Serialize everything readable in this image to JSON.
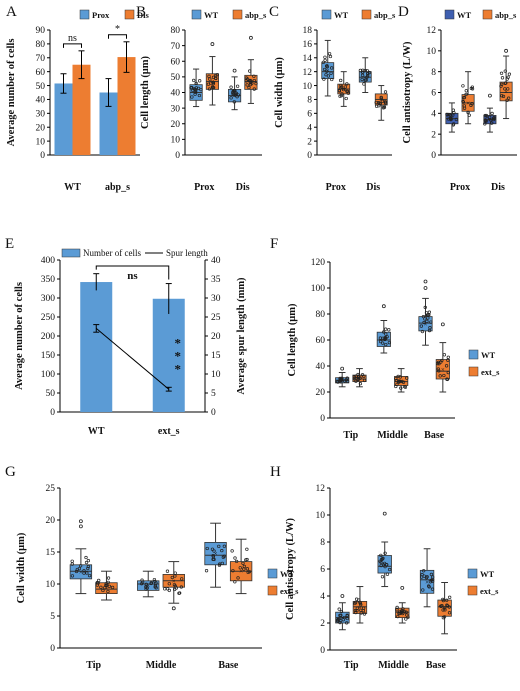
{
  "colors": {
    "blue": "#5b9bd5",
    "orange": "#ed7d31",
    "axis": "#000000",
    "box_stroke": "#333333",
    "dot": "#222222"
  },
  "chart_data": [
    {
      "panel": "A",
      "type": "bar",
      "ylabel": "Average number of cells",
      "ylim": [
        0,
        90
      ],
      "yticks": [
        0,
        10,
        20,
        30,
        40,
        50,
        60,
        70,
        80,
        90
      ],
      "categories": [
        "WT",
        "abp_s"
      ],
      "series": [
        {
          "name": "Prox",
          "color": "#5b9bd5",
          "values": [
            51.5,
            45
          ],
          "errors": [
            7,
            10
          ]
        },
        {
          "name": "Dis",
          "color": "#ed7d31",
          "values": [
            65,
            70.5
          ],
          "errors": [
            10,
            11
          ]
        }
      ],
      "annotations": [
        "ns",
        "*"
      ],
      "legend": "top"
    },
    {
      "panel": "B",
      "type": "box",
      "ylabel": "Cell length (μm)",
      "ylim": [
        0,
        80
      ],
      "yticks": [
        0,
        10,
        20,
        30,
        40,
        50,
        60,
        70,
        80
      ],
      "categories": [
        "Prox",
        "Dis"
      ],
      "series": [
        {
          "name": "WT",
          "color": "#5b9bd5",
          "boxes": [
            {
              "min": 31,
              "q1": 35,
              "median": 40,
              "q3": 45,
              "max": 55,
              "outliers": []
            },
            {
              "min": 29,
              "q1": 34,
              "median": 38,
              "q3": 42,
              "max": 50,
              "outliers": [
                54
              ]
            }
          ]
        },
        {
          "name": "abp_s",
          "color": "#ed7d31",
          "boxes": [
            {
              "min": 32,
              "q1": 42,
              "median": 47,
              "q3": 52,
              "max": 63,
              "outliers": [
                71
              ]
            },
            {
              "min": 33,
              "q1": 42,
              "median": 47,
              "q3": 51,
              "max": 61,
              "outliers": [
                75
              ]
            }
          ]
        }
      ],
      "legend": "top"
    },
    {
      "panel": "C",
      "type": "box",
      "ylabel": "Cell width (μm)",
      "ylim": [
        0,
        18
      ],
      "yticks": [
        0,
        2,
        4,
        6,
        8,
        10,
        12,
        14,
        16,
        18
      ],
      "categories": [
        "Prox",
        "Dis"
      ],
      "series": [
        {
          "name": "WT",
          "color": "#5b9bd5",
          "boxes": [
            {
              "min": 8.5,
              "q1": 11,
              "median": 12,
              "q3": 13.3,
              "max": 16.5,
              "outliers": []
            },
            {
              "min": 9,
              "q1": 10.5,
              "median": 11.2,
              "q3": 12,
              "max": 14,
              "outliers": []
            }
          ]
        },
        {
          "name": "abp_s",
          "color": "#ed7d31",
          "boxes": [
            {
              "min": 7,
              "q1": 8.8,
              "median": 9.5,
              "q3": 10.2,
              "max": 12,
              "outliers": []
            },
            {
              "min": 5,
              "q1": 7.2,
              "median": 8,
              "q3": 8.8,
              "max": 10,
              "outliers": []
            }
          ]
        }
      ],
      "legend": "top"
    },
    {
      "panel": "D",
      "type": "box",
      "ylabel": "Cell antisotropy (L/W)",
      "ylim": [
        0,
        12
      ],
      "yticks": [
        0,
        2,
        4,
        6,
        8,
        10,
        12
      ],
      "categories": [
        "Prox",
        "Dis"
      ],
      "series": [
        {
          "name": "WT",
          "color": "#3f5fb0",
          "boxes": [
            {
              "min": 2.2,
              "q1": 3,
              "median": 3.5,
              "q3": 4,
              "max": 5,
              "outliers": []
            },
            {
              "min": 2.2,
              "q1": 3,
              "median": 3.4,
              "q3": 3.8,
              "max": 4.5,
              "outliers": [
                5.7
              ]
            }
          ]
        },
        {
          "name": "abp_s",
          "color": "#ed7d31",
          "boxes": [
            {
              "min": 3,
              "q1": 4.2,
              "median": 5,
              "q3": 5.8,
              "max": 8,
              "outliers": []
            },
            {
              "min": 3.5,
              "q1": 5.2,
              "median": 6,
              "q3": 7,
              "max": 9.5,
              "outliers": [
                10
              ]
            }
          ]
        }
      ],
      "legend": "top"
    },
    {
      "panel": "E",
      "type": "bar+line",
      "categories": [
        "WT",
        "ext_s"
      ],
      "ylabel": "Average number of cells",
      "y2label": "Average spur length (mm)",
      "ylim": [
        0,
        400
      ],
      "yticks": [
        0,
        50,
        100,
        150,
        200,
        250,
        300,
        350,
        400
      ],
      "y2lim": [
        0,
        40
      ],
      "y2ticks": [
        0,
        5,
        10,
        15,
        20,
        25,
        30,
        35,
        40
      ],
      "series": [
        {
          "name": "Number of cells",
          "color": "#5b9bd5",
          "type": "bar",
          "values": [
            342,
            298
          ],
          "errors": [
            22,
            40
          ]
        },
        {
          "name": "Spur length",
          "color": "#000000",
          "type": "line",
          "axis": "right",
          "values": [
            22,
            6
          ],
          "errors": [
            1,
            0.5
          ]
        }
      ],
      "annotations": [
        "ns",
        "*",
        "*",
        "*"
      ],
      "legend": "top"
    },
    {
      "panel": "F",
      "type": "box",
      "ylabel": "Cell length (μm)",
      "ylim": [
        0,
        120
      ],
      "yticks": [
        0,
        20,
        40,
        60,
        80,
        100,
        120
      ],
      "categories": [
        "Tip",
        "Middle",
        "Base"
      ],
      "series": [
        {
          "name": "WT",
          "color": "#5b9bd5",
          "boxes": [
            {
              "min": 24,
              "q1": 27,
              "median": 29,
              "q3": 31,
              "max": 35,
              "outliers": [
                38
              ]
            },
            {
              "min": 50,
              "q1": 55,
              "median": 60,
              "q3": 66,
              "max": 75,
              "outliers": [
                86
              ]
            },
            {
              "min": 56,
              "q1": 67,
              "median": 73,
              "q3": 78,
              "max": 92,
              "outliers": [
                100,
                105
              ]
            }
          ]
        },
        {
          "name": "ext_s",
          "color": "#ed7d31",
          "boxes": [
            {
              "min": 24,
              "q1": 28,
              "median": 30,
              "q3": 33,
              "max": 38,
              "outliers": []
            },
            {
              "min": 20,
              "q1": 25,
              "median": 28,
              "q3": 32,
              "max": 38,
              "outliers": []
            },
            {
              "min": 20,
              "q1": 30,
              "median": 36,
              "q3": 45,
              "max": 58,
              "outliers": [
                72
              ]
            }
          ]
        }
      ],
      "legend": "right"
    },
    {
      "panel": "G",
      "type": "box",
      "ylabel": "Cell width (μm)",
      "ylim": [
        0,
        25
      ],
      "yticks": [
        0,
        5,
        10,
        15,
        20,
        25
      ],
      "categories": [
        "Tip",
        "Middle",
        "Base"
      ],
      "series": [
        {
          "name": "WT",
          "color": "#5b9bd5",
          "boxes": [
            {
              "min": 8.5,
              "q1": 10.8,
              "median": 12,
              "q3": 13,
              "max": 15.5,
              "outliers": [
                19,
                19.8
              ]
            },
            {
              "min": 8,
              "q1": 9,
              "median": 10,
              "q3": 10.5,
              "max": 12,
              "outliers": []
            },
            {
              "min": 9.5,
              "q1": 13,
              "median": 14.5,
              "q3": 16.5,
              "max": 19.5,
              "outliers": []
            }
          ]
        },
        {
          "name": "ext_s",
          "color": "#ed7d31",
          "boxes": [
            {
              "min": 7.5,
              "q1": 8.5,
              "median": 9.2,
              "q3": 10.2,
              "max": 12,
              "outliers": []
            },
            {
              "min": 7,
              "q1": 9.5,
              "median": 10.5,
              "q3": 11.5,
              "max": 13.5,
              "outliers": [
                6.2
              ]
            },
            {
              "min": 8.5,
              "q1": 10.5,
              "median": 12,
              "q3": 13.5,
              "max": 17,
              "outliers": []
            }
          ]
        }
      ],
      "legend": "right"
    },
    {
      "panel": "H",
      "type": "box",
      "ylabel": "Cell antisotropy (L/W)",
      "ylim": [
        0,
        12
      ],
      "yticks": [
        0,
        2,
        4,
        6,
        8,
        10,
        12
      ],
      "categories": [
        "Tip",
        "Middle",
        "Base"
      ],
      "series": [
        {
          "name": "WT",
          "color": "#5b9bd5",
          "boxes": [
            {
              "min": 1.5,
              "q1": 2,
              "median": 2.4,
              "q3": 2.8,
              "max": 3.5,
              "outliers": [
                4
              ]
            },
            {
              "min": 4.7,
              "q1": 5.7,
              "median": 6.2,
              "q3": 7,
              "max": 8,
              "outliers": [
                10.1
              ]
            },
            {
              "min": 3.2,
              "q1": 4.2,
              "median": 5.2,
              "q3": 5.9,
              "max": 7.5,
              "outliers": []
            }
          ]
        },
        {
          "name": "ext_s",
          "color": "#ed7d31",
          "boxes": [
            {
              "min": 2,
              "q1": 2.7,
              "median": 3.2,
              "q3": 3.6,
              "max": 4.7,
              "outliers": []
            },
            {
              "min": 2,
              "q1": 2.4,
              "median": 2.8,
              "q3": 3.1,
              "max": 3.5,
              "outliers": [
                4.6
              ]
            },
            {
              "min": 1.2,
              "q1": 2.5,
              "median": 3.2,
              "q3": 3.7,
              "max": 5,
              "outliers": []
            }
          ]
        }
      ],
      "legend": "right"
    }
  ]
}
